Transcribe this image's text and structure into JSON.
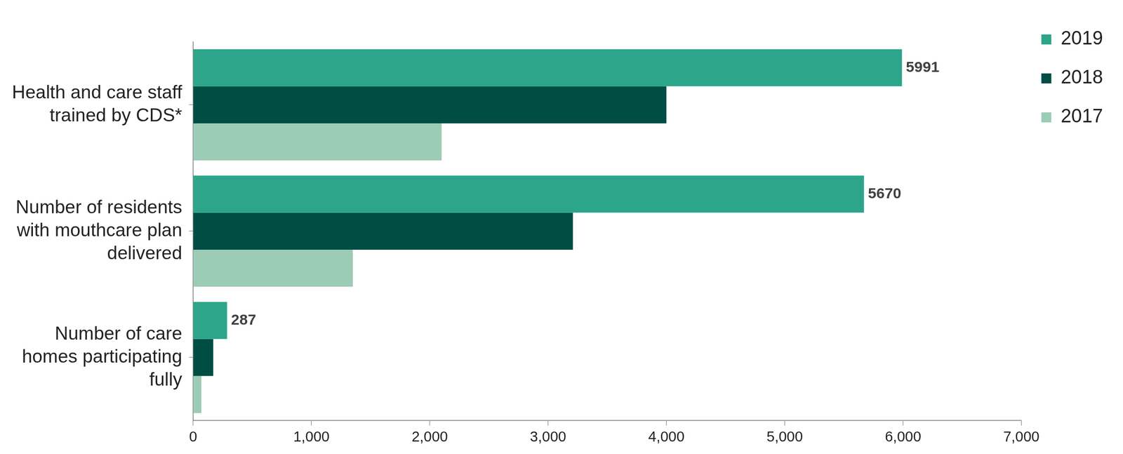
{
  "chart_data": {
    "type": "bar",
    "orientation": "horizontal",
    "categories": [
      [
        "Health and care staff",
        "trained by CDS*"
      ],
      [
        "Number of residents",
        "with mouthcare plan",
        "delivered"
      ],
      [
        "Number of care",
        "homes participating",
        "fully"
      ]
    ],
    "series": [
      {
        "name": "2019",
        "color": "#2ca58a",
        "values": [
          5991,
          5670,
          287
        ],
        "data_labels": true
      },
      {
        "name": "2018",
        "color": "#004d43",
        "values": [
          4000,
          3210,
          170
        ]
      },
      {
        "name": "2017",
        "color": "#9ccbb6",
        "values": [
          2100,
          1350,
          70
        ]
      }
    ],
    "xlim": [
      0,
      7000
    ],
    "xticks": [
      0,
      {
        "value": 1000,
        "label": "1,000"
      },
      {
        "value": 2000,
        "label": "2,000"
      },
      {
        "value": 3000,
        "label": "3,000"
      },
      {
        "value": 4000,
        "label": "4,000"
      },
      {
        "value": 5000,
        "label": "5,000"
      },
      {
        "value": 6000,
        "label": "6,000"
      },
      {
        "value": 7000,
        "label": "7,000"
      }
    ],
    "grid": false,
    "legend": "upper right"
  }
}
